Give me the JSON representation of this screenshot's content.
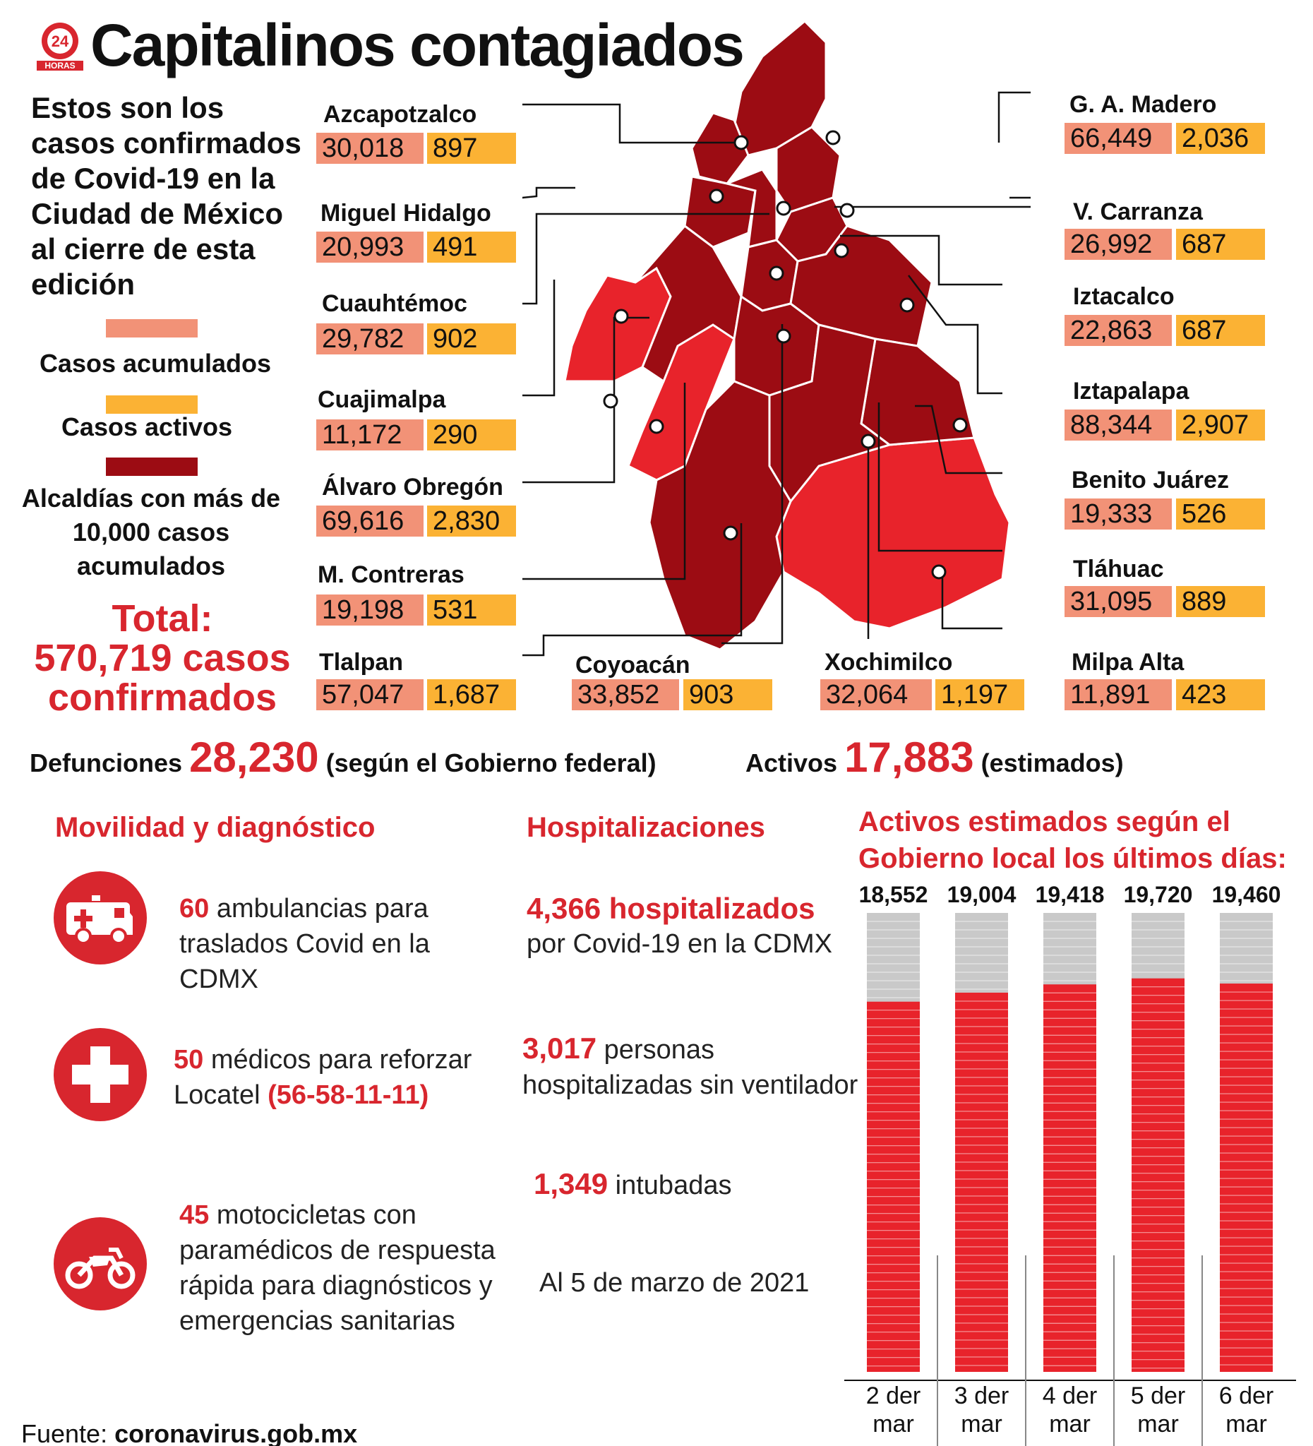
{
  "header": {
    "title": "Capitalinos contagiados",
    "intro": "Estos son los casos confirmados de Covid-19 en la Ciudad de México al cierre de esta edición"
  },
  "legend": {
    "accumulated": "Casos acumulados",
    "active": "Casos activos",
    "over10k": "Alcaldías con más de 10,000 casos acumulados",
    "accumulated_color": "#f29277",
    "active_color": "#fbb234",
    "dark_color": "#9c0c13",
    "light_color": "#e8232b"
  },
  "total": {
    "label": "Total:",
    "value": "570,719 casos",
    "suffix": "confirmados"
  },
  "regions": [
    {
      "name": "Azcapotzalco",
      "acc": "30,018",
      "act": "897"
    },
    {
      "name": "Miguel Hidalgo",
      "acc": "20,993",
      "act": "491"
    },
    {
      "name": "Cuauhtémoc",
      "acc": "29,782",
      "act": "902"
    },
    {
      "name": "Cuajimalpa",
      "acc": "11,172",
      "act": "290"
    },
    {
      "name": "Álvaro Obregón",
      "acc": "69,616",
      "act": "2,830"
    },
    {
      "name": "M. Contreras",
      "acc": "19,198",
      "act": "531"
    },
    {
      "name": "Tlalpan",
      "acc": "57,047",
      "act": "1,687"
    },
    {
      "name": "Coyoacán",
      "acc": "33,852",
      "act": "903"
    },
    {
      "name": "Xochimilco",
      "acc": "32,064",
      "act": "1,197"
    },
    {
      "name": "Milpa Alta",
      "acc": "11,891",
      "act": "423"
    },
    {
      "name": "Tláhuac",
      "acc": "31,095",
      "act": "889"
    },
    {
      "name": "Benito Juárez",
      "acc": "19,333",
      "act": "526"
    },
    {
      "name": "Iztapalapa",
      "acc": "88,344",
      "act": "2,907"
    },
    {
      "name": "Iztacalco",
      "acc": "22,863",
      "act": "687"
    },
    {
      "name": "V. Carranza",
      "acc": "26,992",
      "act": "687"
    },
    {
      "name": "G. A. Madero",
      "acc": "66,449",
      "act": "2,036"
    }
  ],
  "stats": {
    "deaths_label": "Defunciones",
    "deaths_value": "28,230",
    "deaths_note": "(según el Gobierno federal)",
    "active_label": "Activos",
    "active_value": "17,883",
    "active_note": "(estimados)"
  },
  "mobility": {
    "title": "Movilidad y diagnóstico",
    "items": [
      {
        "num": "60",
        "text": " ambulancias para traslados Covid en la CDMX",
        "icon": "ambulance-icon"
      },
      {
        "num": "50",
        "text": " médicos para reforzar Locatel ",
        "phone": "(56-58-11-11)",
        "icon": "medical-cross-icon"
      },
      {
        "num": "45",
        "text": " motocicletas con paramédicos de respuesta rápida para diagnósticos y emergencias sanitarias",
        "icon": "motorcycle-icon"
      }
    ]
  },
  "hospital": {
    "title": "Hospitalizaciones",
    "h1_num": "4,366 hospitalizados",
    "h1_text": "por Covid-19 en la CDMX",
    "h2_num": "3,017",
    "h2_text": " personas hospitalizadas sin ventilador",
    "h3_num": "1,349",
    "h3_text": " intubadas",
    "date": "Al 5 de marzo de 2021"
  },
  "chart_data": {
    "type": "bar",
    "title": "Activos estimados según el Gobierno local los últimos días:",
    "categories": [
      "2 der mar",
      "3 der mar",
      "4 der mar",
      "5 der mar",
      "6 der mar"
    ],
    "values": [
      18552,
      19004,
      19418,
      19720,
      19460
    ],
    "value_labels": [
      "18,552",
      "19,004",
      "19,418",
      "19,720",
      "19,460"
    ],
    "bar_color": "#e8232b",
    "track_color": "#c9c9c9"
  },
  "footer": {
    "label": "Fuente: ",
    "source": "coronavirus.gob.mx"
  }
}
